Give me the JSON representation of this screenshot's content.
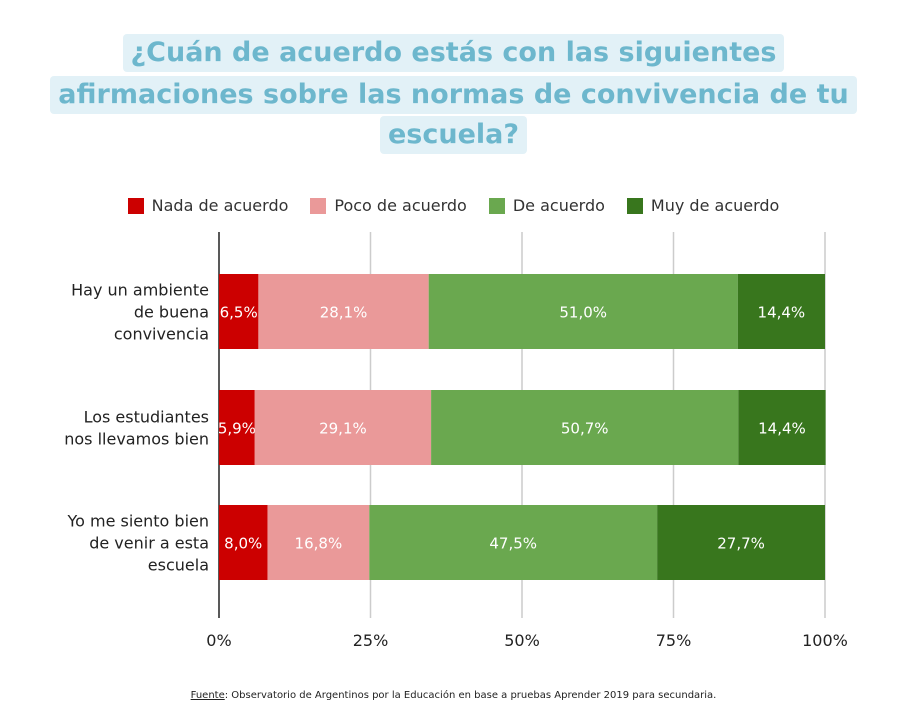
{
  "title_lines": [
    "¿Cuán de acuerdo estás con las siguientes",
    "afirmaciones sobre las normas de convivencia de tu",
    "escuela?"
  ],
  "source": {
    "label": "Fuente",
    "text": ": Observatorio de Argentinos por la Educación en base a pruebas Aprender 2019 para secundaria."
  },
  "chart_data": {
    "type": "bar",
    "orientation": "horizontal",
    "stacked": true,
    "title": "¿Cuán de acuerdo estás con las siguientes afirmaciones sobre las normas de convivencia de tu escuela?",
    "categories": [
      [
        "Hay un ambiente",
        "de buena",
        "convivencia"
      ],
      [
        "Los estudiantes",
        "nos llevamos bien"
      ],
      [
        "Yo me siento bien",
        "de venir a esta",
        "escuela"
      ]
    ],
    "series": [
      {
        "name": "Nada de acuerdo",
        "color": "#cc0000",
        "values": [
          6.5,
          5.9,
          8.0
        ],
        "labels": [
          "6,5%",
          "5,9%",
          "8,0%"
        ]
      },
      {
        "name": "Poco de acuerdo",
        "color": "#ea9999",
        "values": [
          28.1,
          29.1,
          16.8
        ],
        "labels": [
          "28,1%",
          "29,1%",
          "16,8%"
        ]
      },
      {
        "name": "De acuerdo",
        "color": "#6aa84f",
        "values": [
          51.0,
          50.7,
          47.5
        ],
        "labels": [
          "51,0%",
          "50,7%",
          "47,5%"
        ]
      },
      {
        "name": "Muy de acuerdo",
        "color": "#38761d",
        "values": [
          14.4,
          14.4,
          27.7
        ],
        "labels": [
          "14,4%",
          "14,4%",
          "27,7%"
        ]
      }
    ],
    "xlim": [
      0,
      100
    ],
    "xticks": [
      "0%",
      "25%",
      "50%",
      "75%",
      "100%"
    ],
    "grid": true,
    "legend": "top"
  }
}
